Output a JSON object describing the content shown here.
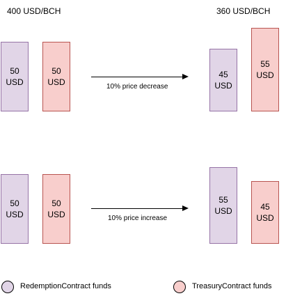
{
  "colors": {
    "purple_fill": "#e1d5e7",
    "purple_stroke": "#9673a6",
    "red_fill": "#f8cecc",
    "red_stroke": "#b85450"
  },
  "prices": {
    "before": "400 USD/BCH",
    "after": "360 USD/BCH"
  },
  "top": {
    "left_purple": "50\nUSD",
    "left_red": "50\nUSD",
    "caption": "10% price decrease",
    "right_purple": "45\nUSD",
    "right_red": "55\nUSD"
  },
  "bottom": {
    "left_purple": "50\nUSD",
    "left_red": "50\nUSD",
    "caption": "10% price increase",
    "right_purple": "55\nUSD",
    "right_red": "45\nUSD"
  },
  "legend": {
    "redemption": "RedemptionContract funds",
    "treasury": "TreasuryContract funds"
  }
}
